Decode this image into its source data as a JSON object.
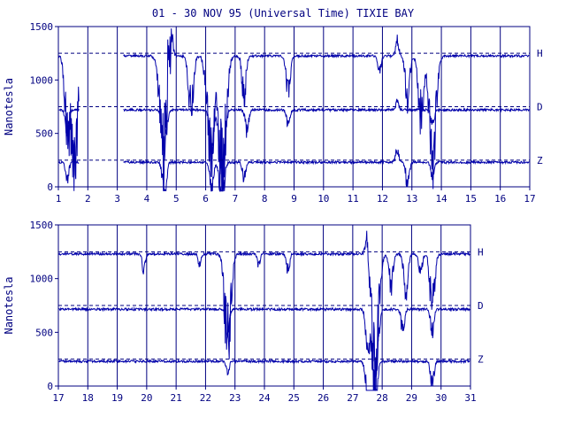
{
  "chart_data": [
    {
      "type": "line",
      "title": "01 - 30 NOV 95 (Universal Time) TIXIE BAY",
      "ylabel": "Nanotesla",
      "xlabel": "",
      "x_range": [
        1,
        17
      ],
      "ylim": [
        0,
        1500
      ],
      "x_ticks": [
        "1",
        "2",
        "3",
        "4",
        "5",
        "6",
        "7",
        "8",
        "9",
        "10",
        "11",
        "12",
        "13",
        "14",
        "15",
        "16",
        "17"
      ],
      "y_ticks": [
        "0",
        "500",
        "1000",
        "1500"
      ],
      "grid": "vertical",
      "series": [
        {
          "name": "H",
          "baseline": 1250,
          "quiet_level": 1225,
          "disturbances": [
            [
              1.3,
              -600
            ],
            [
              1.55,
              -900
            ],
            [
              2.0,
              0
            ],
            [
              4.6,
              -1100
            ],
            [
              4.75,
              600
            ],
            [
              5.5,
              -500
            ],
            [
              6.15,
              -900
            ],
            [
              6.55,
              -1100
            ],
            [
              7.3,
              -350
            ],
            [
              8.8,
              -350
            ],
            [
              11.9,
              -150
            ],
            [
              12.5,
              150
            ],
            [
              12.85,
              -400
            ],
            [
              13.3,
              -550
            ],
            [
              13.7,
              -900
            ]
          ],
          "data_gap": [
            [
              1.7,
              3.2
            ]
          ]
        },
        {
          "name": "D",
          "baseline": 750,
          "quiet_level": 720,
          "disturbances": [
            [
              1.3,
              -200
            ],
            [
              4.6,
              -400
            ],
            [
              6.2,
              -350
            ],
            [
              6.55,
              -600
            ],
            [
              7.4,
              -200
            ],
            [
              8.8,
              -150
            ],
            [
              12.5,
              80
            ],
            [
              13.7,
              -150
            ]
          ],
          "data_gap": [
            [
              1.7,
              3.2
            ]
          ]
        },
        {
          "name": "Z",
          "baseline": 250,
          "quiet_level": 230,
          "disturbances": [
            [
              1.3,
              -150
            ],
            [
              4.6,
              -300
            ],
            [
              6.2,
              -250
            ],
            [
              6.55,
              -400
            ],
            [
              7.3,
              -150
            ],
            [
              12.5,
              120
            ],
            [
              12.85,
              -200
            ],
            [
              13.7,
              -150
            ]
          ],
          "data_gap": [
            [
              1.7,
              3.2
            ]
          ]
        }
      ]
    },
    {
      "type": "line",
      "title": "",
      "ylabel": "Nanotesla",
      "xlabel": "",
      "x_range": [
        17,
        31
      ],
      "ylim": [
        0,
        1500
      ],
      "x_ticks": [
        "17",
        "18",
        "19",
        "20",
        "21",
        "22",
        "23",
        "24",
        "25",
        "26",
        "27",
        "28",
        "29",
        "30",
        "31"
      ],
      "y_ticks": [
        "0",
        "500",
        "1000",
        "1500"
      ],
      "grid": "vertical",
      "series": [
        {
          "name": "H",
          "baseline": 1250,
          "quiet_level": 1230,
          "disturbances": [
            [
              19.9,
              -150
            ],
            [
              21.8,
              -100
            ],
            [
              22.75,
              -800
            ],
            [
              23.8,
              -100
            ],
            [
              24.8,
              -150
            ],
            [
              27.5,
              250
            ],
            [
              27.75,
              -1000
            ],
            [
              28.3,
              -300
            ],
            [
              28.8,
              -350
            ],
            [
              29.3,
              -200
            ],
            [
              29.7,
              -500
            ]
          ]
        },
        {
          "name": "D",
          "baseline": 750,
          "quiet_level": 715,
          "disturbances": [
            [
              22.75,
              -200
            ],
            [
              27.5,
              -300
            ],
            [
              27.75,
              -700
            ],
            [
              28.7,
              -200
            ],
            [
              29.7,
              -200
            ]
          ]
        },
        {
          "name": "Z",
          "baseline": 250,
          "quiet_level": 230,
          "disturbances": [
            [
              22.75,
              -100
            ],
            [
              27.55,
              -500
            ],
            [
              27.75,
              -400
            ],
            [
              29.7,
              -200
            ]
          ]
        }
      ]
    }
  ],
  "colors": {
    "ink": "#000080",
    "trace": "#0000aa",
    "grid": "#000080",
    "background": "#ffffff"
  }
}
